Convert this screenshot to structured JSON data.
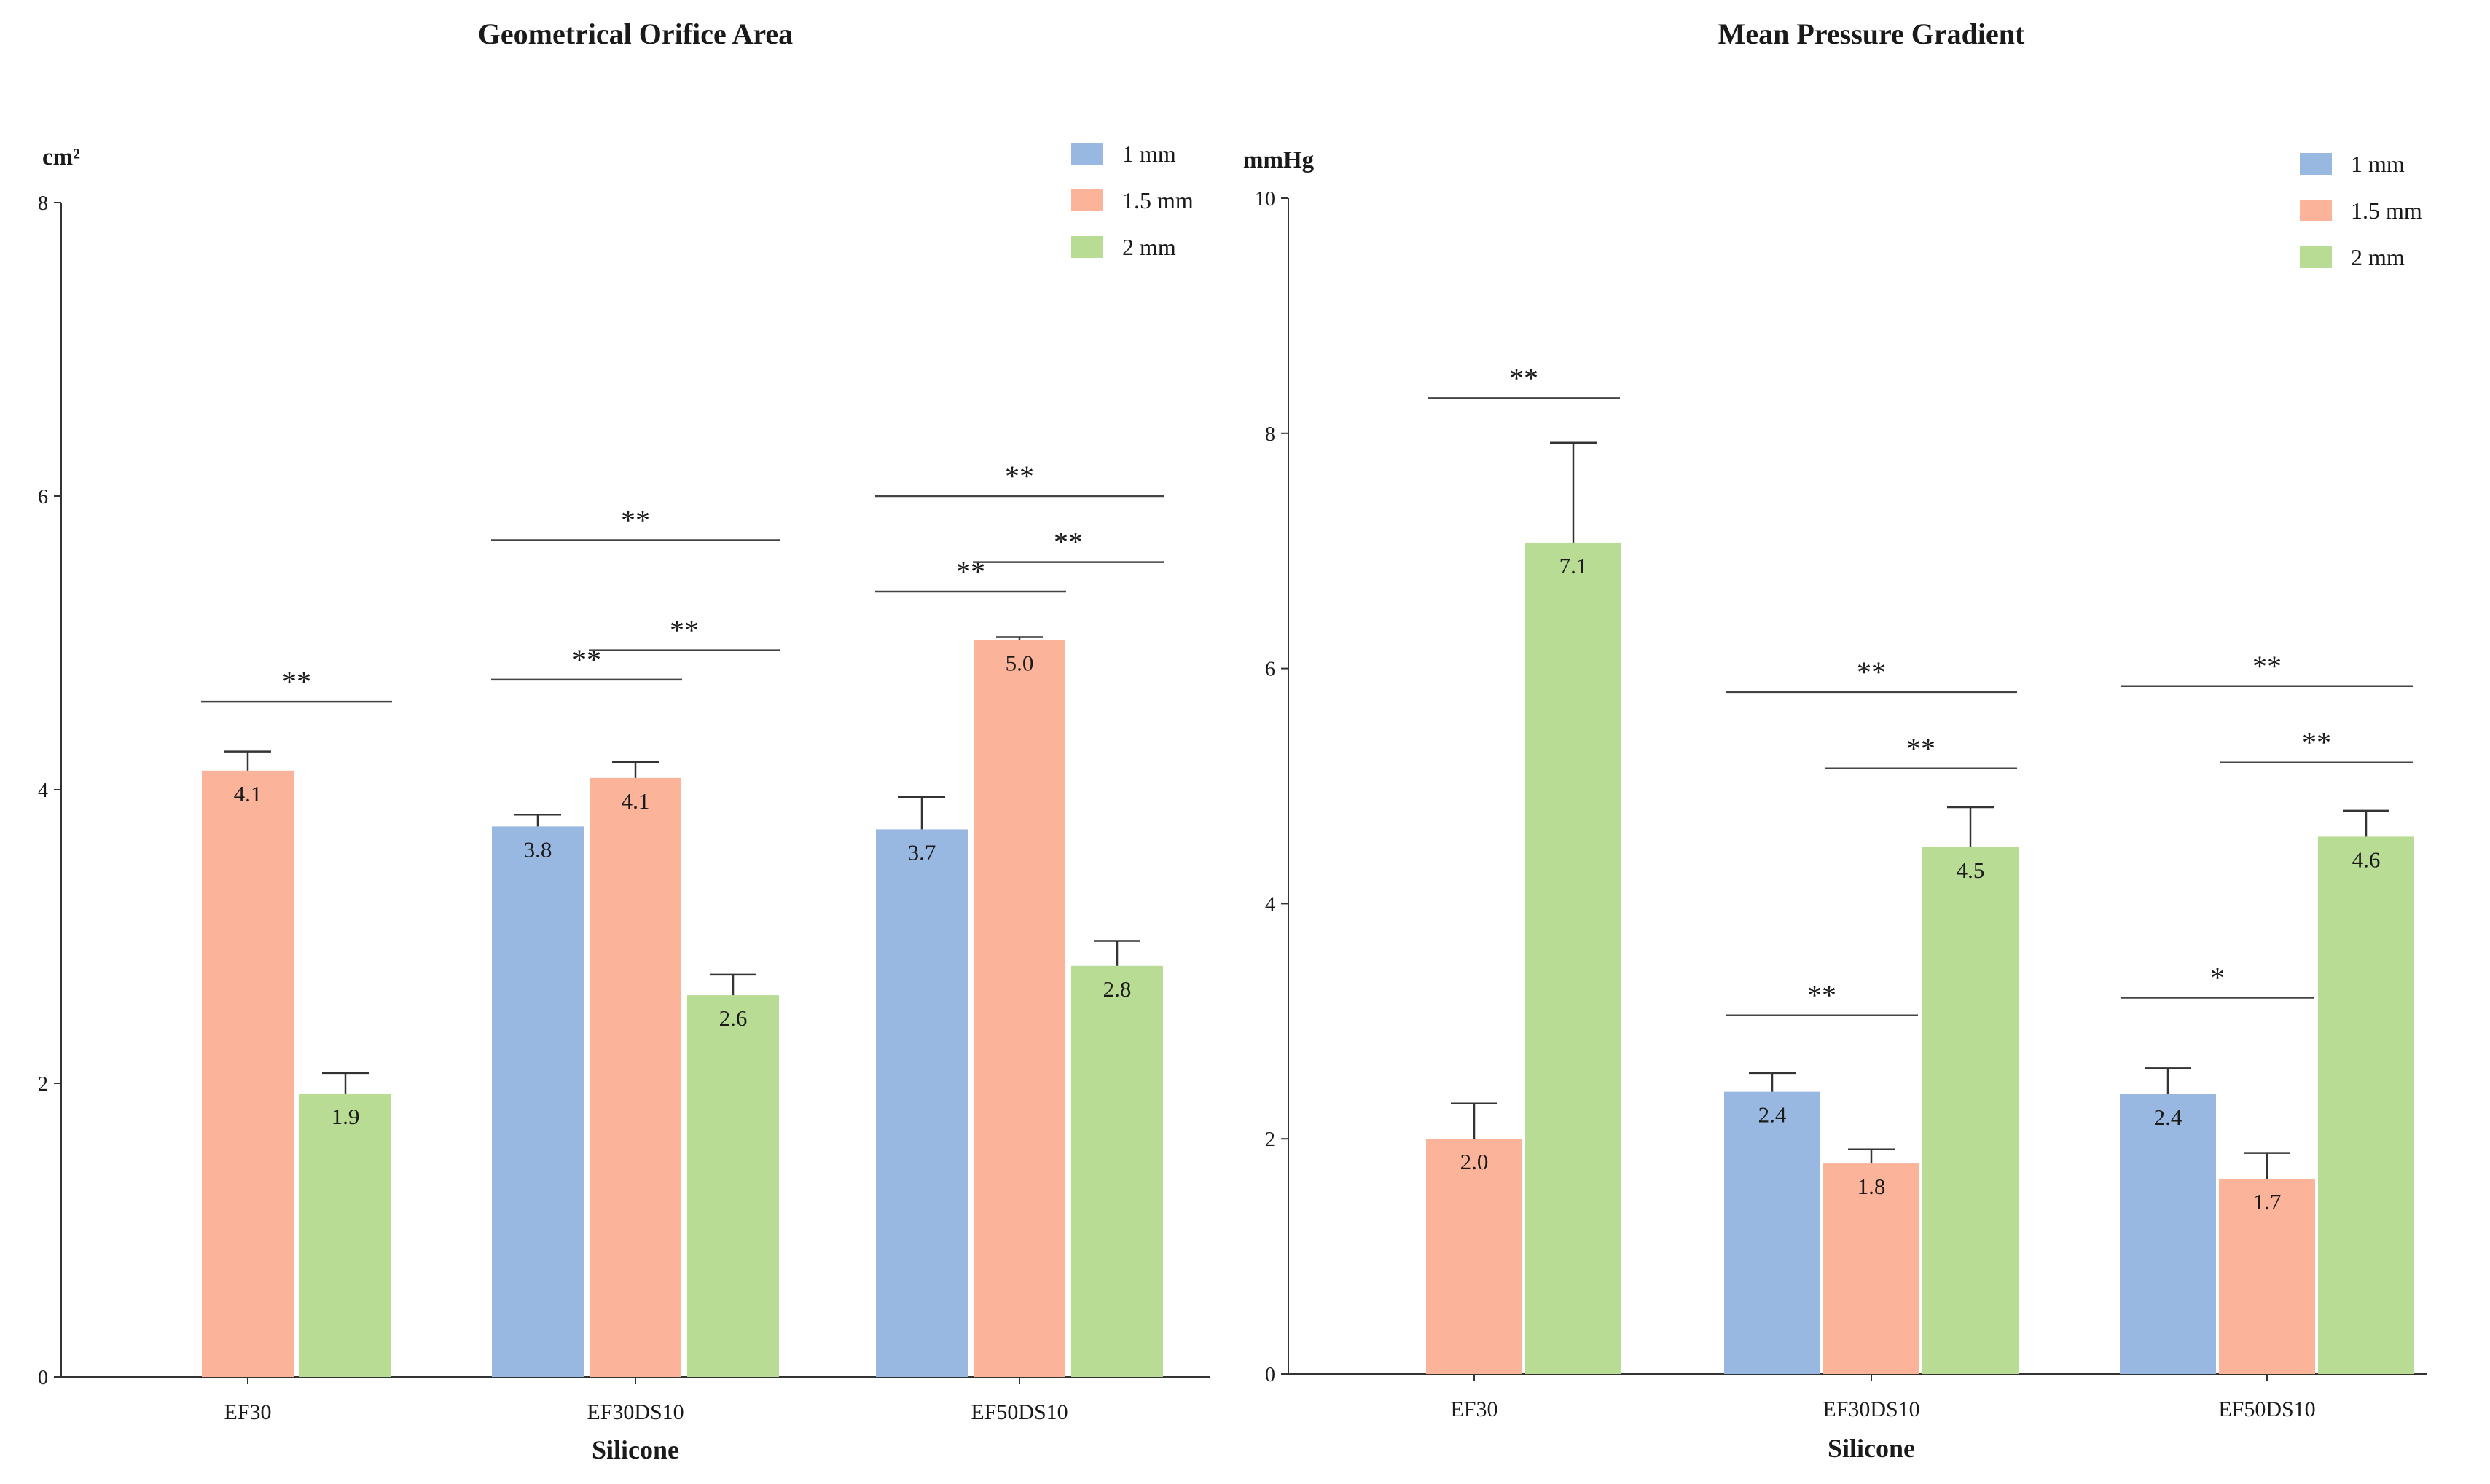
{
  "chart_data": [
    {
      "type": "bar",
      "title": "Geometrical Orifice Area",
      "ylabel": "cm²",
      "xlabel": "Silicone",
      "ylim": [
        0,
        8
      ],
      "yticks": [
        0,
        2,
        4,
        6,
        8
      ],
      "categories": [
        "EF30",
        "EF30DS10",
        "EF50DS10"
      ],
      "legend_position": "top-right",
      "series": [
        {
          "name": "1 mm",
          "color": "#98b8e2",
          "values": [
            null,
            3.75,
            3.73
          ],
          "errors": [
            null,
            0.08,
            0.22
          ],
          "labels": [
            "",
            "3.8",
            "3.7"
          ]
        },
        {
          "name": "1.5 mm",
          "color": "#fbb49a",
          "values": [
            4.13,
            4.08,
            5.02
          ],
          "errors": [
            0.13,
            0.11,
            0.02
          ],
          "labels": [
            "4.1",
            "4.1",
            "5.0"
          ]
        },
        {
          "name": "2 mm",
          "color": "#b9dc94",
          "values": [
            1.93,
            2.6,
            2.8
          ],
          "errors": [
            0.14,
            0.14,
            0.17
          ],
          "labels": [
            "1.9",
            "2.6",
            "2.8"
          ]
        }
      ],
      "significance": [
        {
          "category": 0,
          "from": 1,
          "to": 2,
          "y": 4.6,
          "label": "**"
        },
        {
          "category": 1,
          "from": 0,
          "to": 1,
          "y": 4.75,
          "label": "**"
        },
        {
          "category": 1,
          "from": 1,
          "to": 2,
          "y": 4.95,
          "label": "**"
        },
        {
          "category": 1,
          "from": 0,
          "to": 2,
          "y": 5.7,
          "label": "**"
        },
        {
          "category": 2,
          "from": 0,
          "to": 1,
          "y": 5.35,
          "label": "**"
        },
        {
          "category": 2,
          "from": 1,
          "to": 2,
          "y": 5.55,
          "label": "**"
        },
        {
          "category": 2,
          "from": 0,
          "to": 2,
          "y": 6.0,
          "label": "**"
        }
      ]
    },
    {
      "type": "bar",
      "title": "Mean Pressure Gradient",
      "ylabel": "mmHg",
      "xlabel": "Silicone",
      "ylim": [
        0,
        10
      ],
      "yticks": [
        0,
        2,
        4,
        6,
        8,
        10
      ],
      "categories": [
        "EF30",
        "EF30DS10",
        "EF50DS10"
      ],
      "legend_position": "top-right",
      "series": [
        {
          "name": "1 mm",
          "color": "#98b8e2",
          "values": [
            null,
            2.4,
            2.38
          ],
          "errors": [
            null,
            0.16,
            0.22
          ],
          "labels": [
            "",
            "2.4",
            "2.4"
          ]
        },
        {
          "name": "1.5 mm",
          "color": "#fbb49a",
          "values": [
            2.0,
            1.79,
            1.66
          ],
          "errors": [
            0.3,
            0.12,
            0.22
          ],
          "labels": [
            "2.0",
            "1.8",
            "1.7"
          ]
        },
        {
          "name": "2 mm",
          "color": "#b9dc94",
          "values": [
            7.07,
            4.48,
            4.57
          ],
          "errors": [
            0.85,
            0.34,
            0.22
          ],
          "labels": [
            "7.1",
            "4.5",
            "4.6"
          ]
        }
      ],
      "significance": [
        {
          "category": 0,
          "from": 1,
          "to": 2,
          "y": 8.3,
          "label": "**"
        },
        {
          "category": 1,
          "from": 0,
          "to": 1,
          "y": 3.05,
          "label": "**"
        },
        {
          "category": 1,
          "from": 1,
          "to": 2,
          "y": 5.15,
          "label": "**"
        },
        {
          "category": 1,
          "from": 0,
          "to": 2,
          "y": 5.8,
          "label": "**"
        },
        {
          "category": 2,
          "from": 0,
          "to": 1,
          "y": 3.2,
          "label": "*"
        },
        {
          "category": 2,
          "from": 1,
          "to": 2,
          "y": 5.2,
          "label": "**"
        },
        {
          "category": 2,
          "from": 0,
          "to": 2,
          "y": 5.85,
          "label": "**"
        }
      ]
    }
  ]
}
